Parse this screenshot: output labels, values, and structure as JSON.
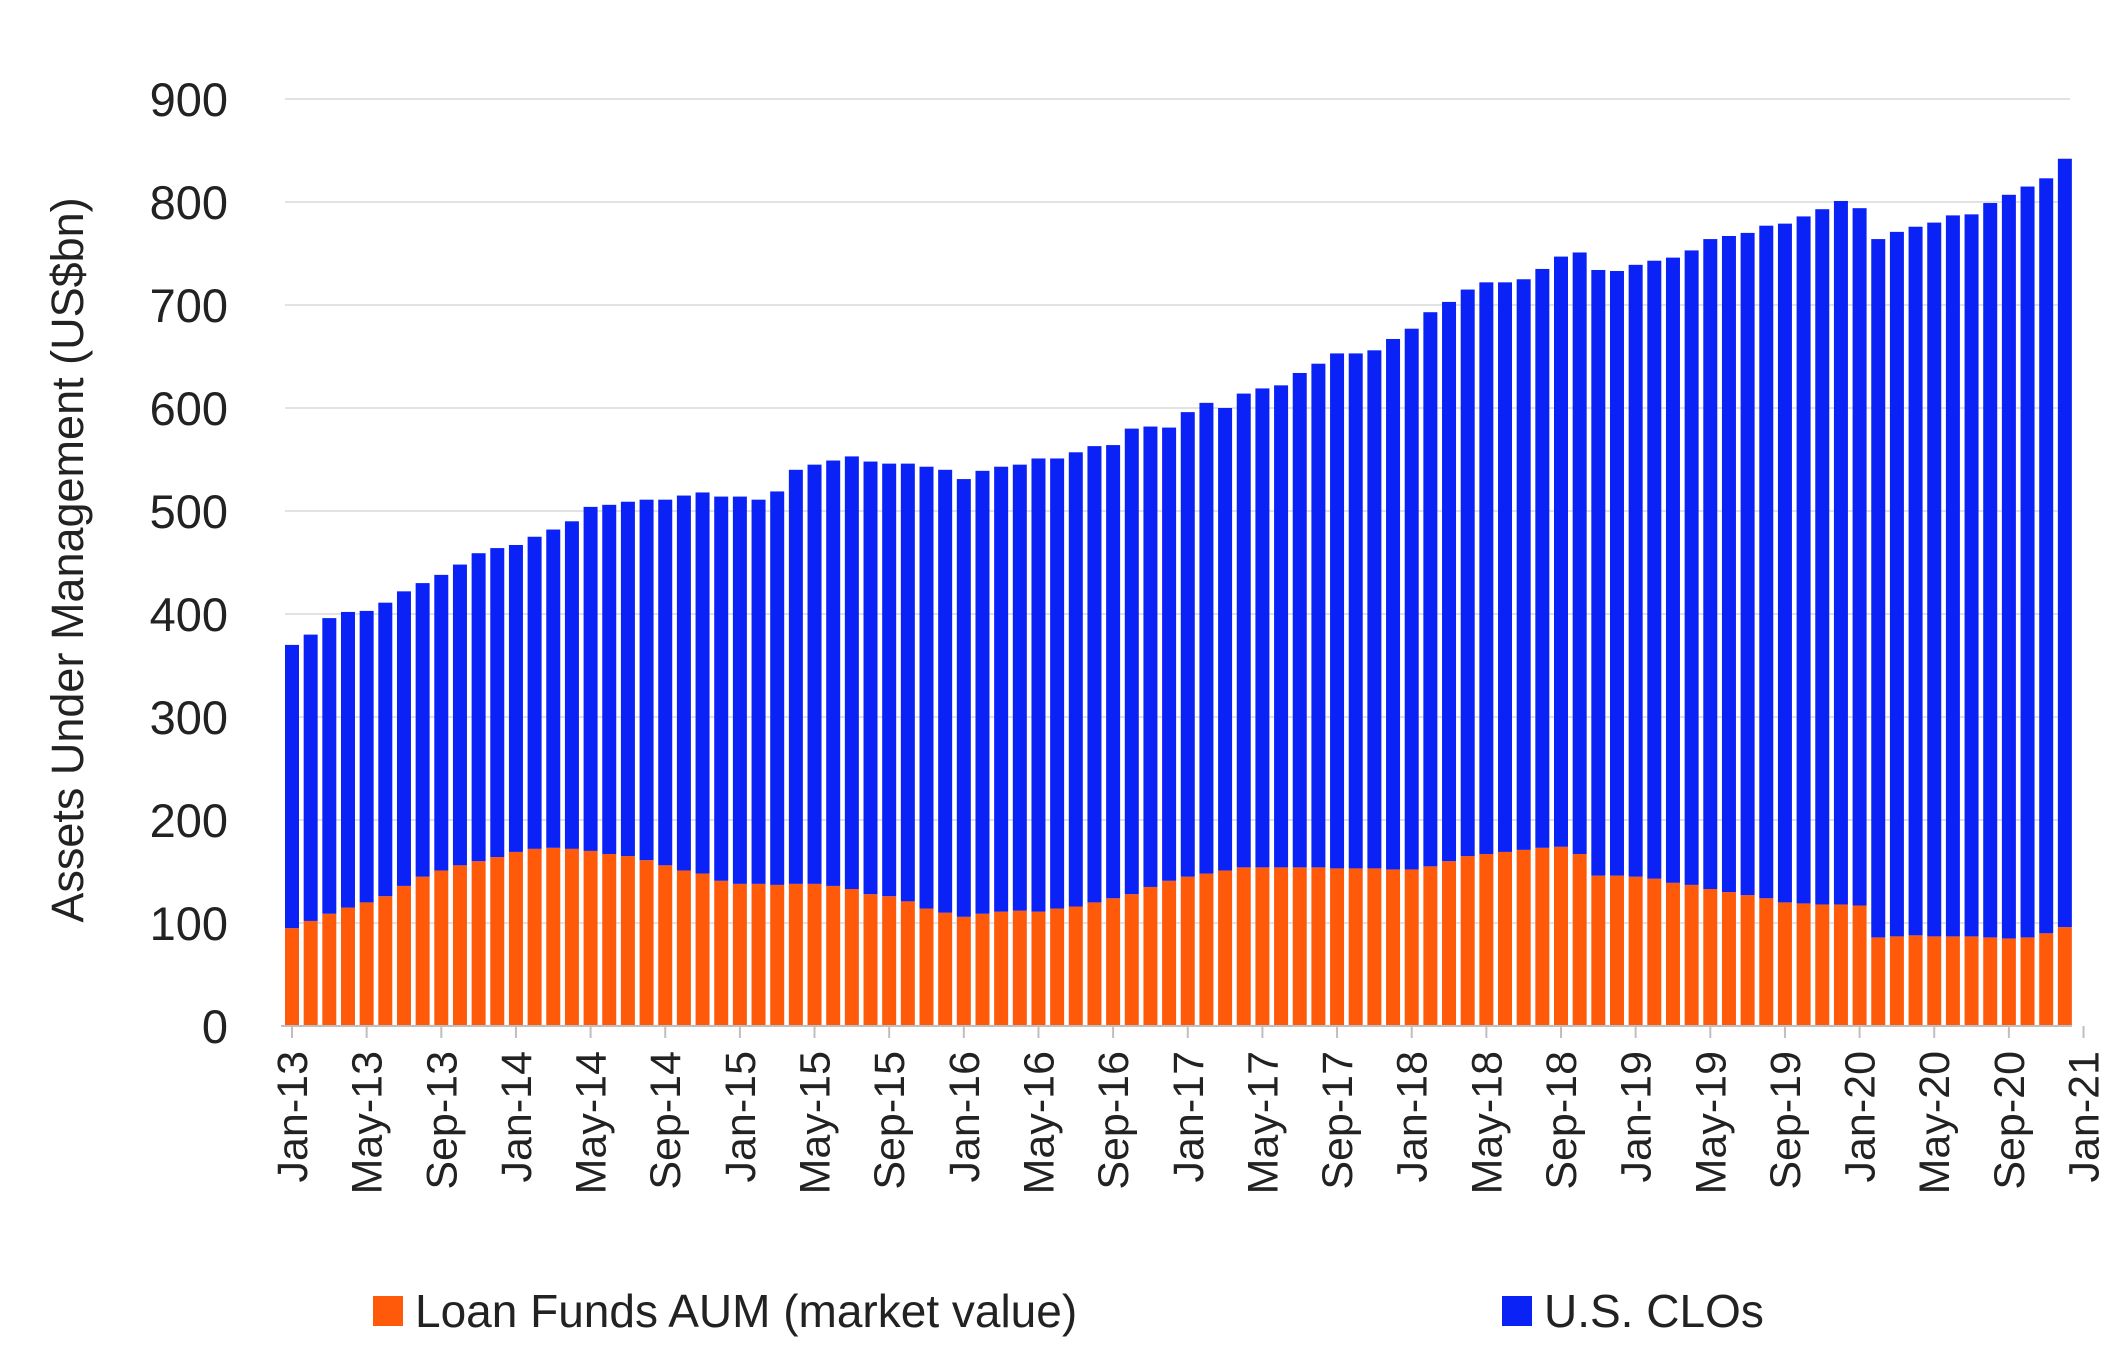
{
  "chart_data": {
    "type": "bar",
    "stacked": true,
    "ylabel": "Assets Under Management (US$bn)",
    "xlabel": "",
    "ylim": [
      0,
      900
    ],
    "yticks": [
      0,
      100,
      200,
      300,
      400,
      500,
      600,
      700,
      800,
      900
    ],
    "grid": "horizontal",
    "legend_position": "bottom",
    "x_tick_labels": [
      "Jan-13",
      "May-13",
      "Sep-13",
      "Jan-14",
      "May-14",
      "Sep-14",
      "Jan-15",
      "May-15",
      "Sep-15",
      "Jan-16",
      "May-16",
      "Sep-16",
      "Jan-17",
      "May-17",
      "Sep-17",
      "Jan-18",
      "May-18",
      "Sep-18",
      "Jan-19",
      "May-19",
      "Sep-19",
      "Jan-20",
      "May-20",
      "Sep-20",
      "Jan-21"
    ],
    "x_tick_every": 4,
    "series": [
      {
        "name": "Loan Funds AUM (market value)",
        "color": "#FF5A0A",
        "values": [
          95,
          102,
          109,
          115,
          120,
          126,
          136,
          145,
          151,
          156,
          160,
          164,
          169,
          172,
          173,
          172,
          170,
          167,
          165,
          161,
          156,
          151,
          148,
          141,
          138,
          138,
          137,
          138,
          138,
          136,
          133,
          128,
          126,
          121,
          114,
          110,
          106,
          109,
          111,
          112,
          111,
          114,
          116,
          120,
          124,
          128,
          135,
          141,
          145,
          148,
          151,
          154,
          154,
          154,
          154,
          154,
          153,
          153,
          153,
          152,
          152,
          155,
          160,
          165,
          167,
          169,
          171,
          173,
          174,
          167,
          146,
          146,
          145,
          143,
          139,
          137,
          133,
          130,
          127,
          124,
          120,
          119,
          118,
          118,
          117,
          86,
          87,
          88,
          87,
          87,
          87,
          86,
          85,
          86,
          90,
          96
        ]
      },
      {
        "name": "U.S. CLOs",
        "color": "#0A22F5",
        "values": [
          275,
          278,
          287,
          287,
          283,
          285,
          286,
          285,
          287,
          292,
          299,
          300,
          298,
          303,
          309,
          318,
          334,
          339,
          344,
          350,
          355,
          364,
          370,
          373,
          376,
          373,
          382,
          402,
          407,
          413,
          420,
          420,
          420,
          425,
          429,
          430,
          425,
          430,
          432,
          433,
          440,
          437,
          441,
          443,
          440,
          452,
          447,
          440,
          451,
          457,
          449,
          460,
          465,
          468,
          480,
          489,
          500,
          500,
          503,
          515,
          525,
          538,
          543,
          550,
          555,
          553,
          554,
          562,
          573,
          584,
          588,
          587,
          594,
          600,
          607,
          616,
          631,
          637,
          643,
          653,
          659,
          667,
          675,
          683,
          677,
          678,
          684,
          688,
          693,
          700,
          701,
          713,
          722,
          729,
          733,
          746
        ]
      }
    ]
  }
}
